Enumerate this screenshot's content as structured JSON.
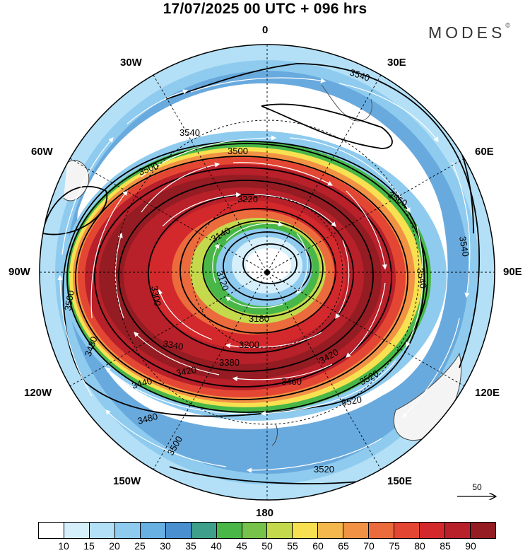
{
  "title": "17/07/2025  00 UTC  + 096 hrs",
  "brand": "MODES",
  "brand_mark": "©",
  "longitudes": {
    "top": "0",
    "bottom": "180",
    "left": "90W",
    "right": "90E",
    "nw30": "30W",
    "ne30": "30E",
    "w60": "60W",
    "e60": "60E",
    "w120": "120W",
    "e120": "120E",
    "w150": "150W",
    "e150": "150E"
  },
  "contours": {
    "labels": [
      "3540",
      "3540",
      "3500",
      "3500",
      "3560",
      "3540",
      "3540",
      "3500",
      "3480",
      "3480",
      "3440",
      "3420",
      "3380",
      "3340",
      "3300",
      "3220",
      "3180",
      "3140",
      "3120",
      "3200",
      "3420",
      "3460",
      "3520",
      "3520",
      "3520",
      "3500"
    ]
  },
  "wind_reference": {
    "label": "50",
    "icon": "arrow-right-icon"
  },
  "colorbar": {
    "colors": [
      "#ffffff",
      "#d6f0fb",
      "#b3e0f6",
      "#8ecbef",
      "#68afe2",
      "#4a8fcf",
      "#3e9f8a",
      "#48b748",
      "#76c24a",
      "#c4d94c",
      "#f7e150",
      "#f5b84d",
      "#f29245",
      "#ec6b3c",
      "#e44634",
      "#d3292c",
      "#b8202a",
      "#951c22"
    ],
    "labels": [
      "10",
      "15",
      "20",
      "25",
      "30",
      "35",
      "40",
      "45",
      "50",
      "55",
      "60",
      "65",
      "70",
      "75",
      "80",
      "85",
      "90"
    ]
  }
}
